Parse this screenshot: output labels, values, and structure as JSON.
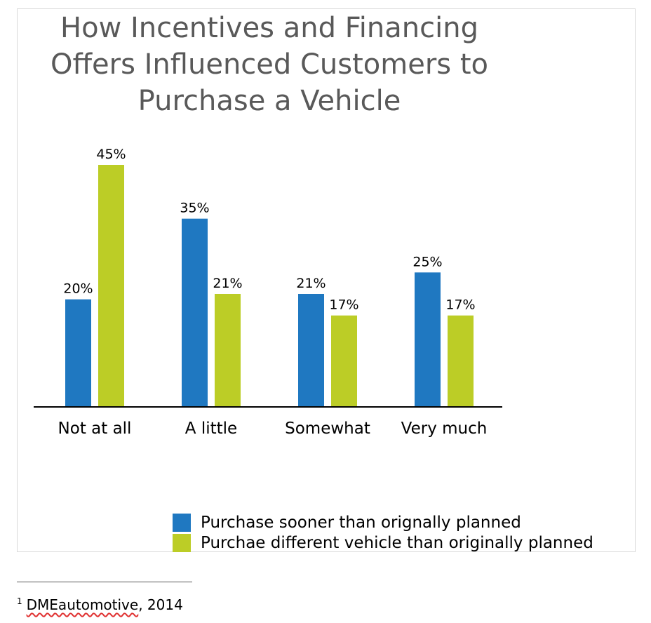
{
  "chart_data": {
    "type": "bar",
    "title": [
      "How Incentives and Financing",
      "Offers Influenced Customers to",
      "Purchase a Vehicle"
    ],
    "categories": [
      "Not at all",
      "A little",
      "Somewhat",
      "Very much"
    ],
    "series": [
      {
        "name": "Purchase sooner than orignally planned",
        "values": [
          20,
          35,
          21,
          25
        ],
        "labels": [
          "20%",
          "35%",
          "21%",
          "25%"
        ],
        "color": "#1f78c1"
      },
      {
        "name": "Purchae different vehicle than originally planned",
        "values": [
          45,
          21,
          17,
          17
        ],
        "labels": [
          "45%",
          "21%",
          "17%",
          "17%"
        ],
        "color": "#bccd26"
      }
    ],
    "ylim": [
      0,
      45
    ],
    "grid": false,
    "legend_position": "bottom-right"
  },
  "footnote": {
    "marker": "1",
    "source": "DMEautomotive",
    "rest": ", 2014"
  }
}
